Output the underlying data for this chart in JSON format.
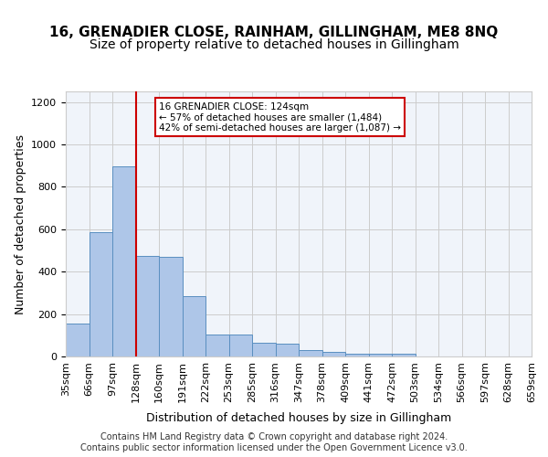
{
  "title": "16, GRENADIER CLOSE, RAINHAM, GILLINGHAM, ME8 8NQ",
  "subtitle": "Size of property relative to detached houses in Gillingham",
  "xlabel": "Distribution of detached houses by size in Gillingham",
  "ylabel": "Number of detached properties",
  "bar_values": [
    155,
    585,
    895,
    475,
    470,
    285,
    105,
    105,
    63,
    62,
    30,
    22,
    15,
    13,
    12,
    0,
    0,
    0,
    0,
    0
  ],
  "bin_labels": [
    "35sqm",
    "66sqm",
    "97sqm",
    "128sqm",
    "160sqm",
    "191sqm",
    "222sqm",
    "253sqm",
    "285sqm",
    "316sqm",
    "347sqm",
    "378sqm",
    "409sqm",
    "441sqm",
    "472sqm",
    "503sqm",
    "534sqm",
    "566sqm",
    "597sqm",
    "628sqm",
    "659sqm"
  ],
  "bar_color": "#aec6e8",
  "bar_edge_color": "#5a8fc0",
  "vline_x": 3,
  "vline_color": "#cc0000",
  "annotation_text": "16 GRENADIER CLOSE: 124sqm\n← 57% of detached houses are smaller (1,484)\n42% of semi-detached houses are larger (1,087) →",
  "annotation_box_color": "#ffffff",
  "annotation_box_edge": "#cc0000",
  "ylim": [
    0,
    1250
  ],
  "yticks": [
    0,
    200,
    400,
    600,
    800,
    1000,
    1200
  ],
  "footer": "Contains HM Land Registry data © Crown copyright and database right 2024.\nContains public sector information licensed under the Open Government Licence v3.0.",
  "bg_color": "#f0f4fa",
  "grid_color": "#cccccc",
  "title_fontsize": 11,
  "subtitle_fontsize": 10,
  "xlabel_fontsize": 9,
  "ylabel_fontsize": 9,
  "tick_fontsize": 8,
  "footer_fontsize": 7
}
